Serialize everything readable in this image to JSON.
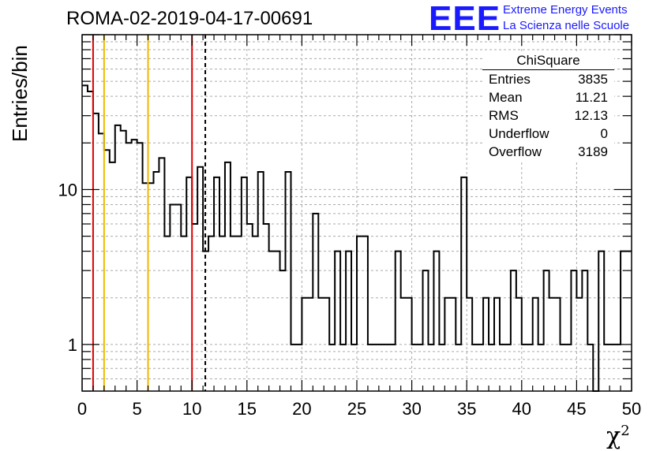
{
  "title": "ROMA-02-2019-04-17-00691",
  "logo": {
    "letters": "EEE",
    "line1": "Extreme Energy Events",
    "line2": "La Scienza nelle Scuole",
    "color": "#1a1aff"
  },
  "stats": {
    "name": "ChiSquare",
    "rows": [
      {
        "label": "Entries",
        "value": "3835"
      },
      {
        "label": "Mean",
        "value": "11.21"
      },
      {
        "label": "RMS",
        "value": "12.13"
      },
      {
        "label": "Underflow",
        "value": "0"
      },
      {
        "label": "Overflow",
        "value": "3189"
      }
    ]
  },
  "chart_data": {
    "type": "histogram",
    "xlabel": "χ",
    "xlabel_sup": "2",
    "ylabel": "Entries/bin",
    "xlim": [
      0,
      50
    ],
    "ylim": [
      0.5,
      100
    ],
    "yscale": "log",
    "grid": true,
    "bin_width": 0.5,
    "xticks": [
      0,
      5,
      10,
      15,
      20,
      25,
      30,
      35,
      40,
      45,
      50
    ],
    "yticks": [
      1,
      10
    ],
    "values": [
      47,
      43,
      31,
      23,
      18,
      15,
      26,
      24,
      20,
      21,
      20,
      11,
      11,
      13,
      16,
      5,
      8,
      8,
      5,
      12,
      6,
      14,
      4,
      5,
      12,
      5,
      15,
      5,
      5,
      12,
      6,
      5,
      13,
      6,
      4,
      4,
      3,
      13,
      1,
      1,
      2,
      2,
      7,
      2,
      2,
      1,
      4,
      1,
      4,
      1,
      5,
      5,
      1,
      1,
      1,
      1,
      1,
      4,
      2,
      2,
      1,
      1,
      3,
      1,
      4,
      1,
      2,
      2,
      1,
      12,
      2,
      1,
      1,
      2,
      1,
      2,
      1,
      1,
      3,
      2,
      1,
      1,
      2,
      1,
      3,
      2,
      2,
      1,
      1,
      3,
      2,
      3,
      1,
      0.5,
      4,
      1,
      1,
      1,
      4,
      4
    ],
    "lines": [
      {
        "x": 1,
        "color": "#e00000",
        "style": "solid"
      },
      {
        "x": 2,
        "color": "#f0b800",
        "style": "solid"
      },
      {
        "x": 6,
        "color": "#f0b800",
        "style": "solid"
      },
      {
        "x": 10,
        "color": "#e00000",
        "style": "solid"
      },
      {
        "x": 11.21,
        "color": "#000000",
        "style": "dashed"
      }
    ]
  }
}
